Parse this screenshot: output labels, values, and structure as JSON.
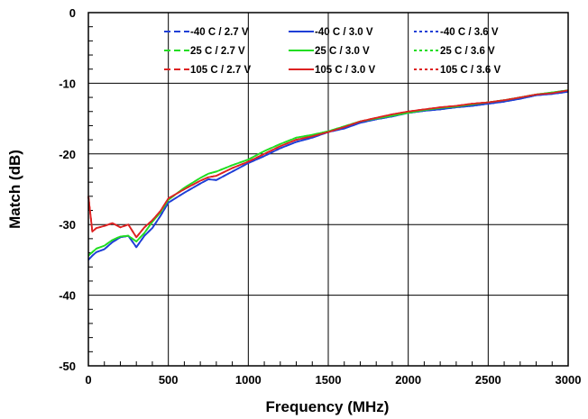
{
  "chart_data": {
    "type": "line",
    "title": "",
    "xlabel": "Frequency (MHz)",
    "ylabel": "Match (dB)",
    "xlim": [
      0,
      3000
    ],
    "ylim": [
      -50,
      0
    ],
    "xticks": [
      0,
      500,
      1000,
      1500,
      2000,
      2500,
      3000
    ],
    "yticks": [
      0,
      -10,
      -20,
      -30,
      -40,
      -50
    ],
    "grid": true,
    "legend_position": "top",
    "series": [
      {
        "name": "-40 C / 2.7 V",
        "color": "#1f3fd6",
        "dash": "dashed",
        "x": [
          0,
          25,
          50,
          100,
          150,
          200,
          250,
          300,
          350,
          400,
          450,
          500,
          600,
          700,
          750,
          800,
          900,
          1000,
          1100,
          1200,
          1300,
          1400,
          1500,
          1600,
          1700,
          1800,
          1900,
          2000,
          2100,
          2200,
          2300,
          2400,
          2500,
          2600,
          2700,
          2800,
          2900,
          3000
        ],
        "y": [
          -35,
          -34.4,
          -33.9,
          -33.5,
          -32.5,
          -31.8,
          -31.6,
          -33.2,
          -31.6,
          -30.5,
          -28.8,
          -26.9,
          -25.5,
          -24.2,
          -23.6,
          -23.7,
          -22.5,
          -21.3,
          -20.3,
          -19.2,
          -18.3,
          -17.7,
          -16.9,
          -16.4,
          -15.6,
          -15.1,
          -14.7,
          -14.2,
          -13.9,
          -13.7,
          -13.4,
          -13.2,
          -12.9,
          -12.6,
          -12.2,
          -11.7,
          -11.5,
          -11.2
        ]
      },
      {
        "name": "25 C / 2.7 V",
        "color": "#22dd22",
        "dash": "dashed",
        "x": [
          0,
          25,
          50,
          100,
          150,
          200,
          250,
          300,
          350,
          400,
          450,
          500,
          600,
          700,
          750,
          800,
          900,
          1000,
          1100,
          1200,
          1300,
          1400,
          1500,
          1600,
          1700,
          1800,
          1900,
          2000,
          2100,
          2200,
          2300,
          2400,
          2500,
          2600,
          2700,
          2800,
          2900,
          3000
        ],
        "y": [
          -34.4,
          -33.9,
          -33.4,
          -33.0,
          -32.2,
          -31.7,
          -31.6,
          -32.4,
          -31.2,
          -29.6,
          -28.3,
          -26.5,
          -24.8,
          -23.4,
          -22.8,
          -22.5,
          -21.6,
          -20.8,
          -19.6,
          -18.6,
          -17.7,
          -17.3,
          -16.8,
          -16.1,
          -15.4,
          -15.0,
          -14.6,
          -14.2,
          -13.8,
          -13.5,
          -13.3,
          -13.0,
          -12.7,
          -12.4,
          -12.0,
          -11.6,
          -11.3,
          -11.0
        ]
      },
      {
        "name": "105 C / 2.7 V",
        "color": "#dd2222",
        "dash": "dashed",
        "x": [
          0,
          25,
          50,
          100,
          150,
          200,
          250,
          300,
          350,
          400,
          450,
          500,
          600,
          700,
          750,
          800,
          900,
          1000,
          1100,
          1200,
          1300,
          1400,
          1500,
          1600,
          1700,
          1800,
          1900,
          2000,
          2100,
          2200,
          2300,
          2400,
          2500,
          2600,
          2700,
          2800,
          2900,
          3000
        ],
        "y": [
          -26,
          -31,
          -30.5,
          -30.2,
          -29.8,
          -30.4,
          -30.0,
          -31.8,
          -30.4,
          -29.4,
          -28.1,
          -26.3,
          -25.0,
          -23.8,
          -23.3,
          -23.1,
          -22.0,
          -21.1,
          -20.0,
          -18.9,
          -18.0,
          -17.5,
          -16.9,
          -16.2,
          -15.4,
          -14.9,
          -14.4,
          -14.0,
          -13.7,
          -13.4,
          -13.2,
          -12.9,
          -12.7,
          -12.4,
          -12.0,
          -11.6,
          -11.4,
          -11.0
        ]
      },
      {
        "name": "-40 C / 3.0 V",
        "color": "#1f3fd6",
        "dash": "solid",
        "x": [
          0,
          25,
          50,
          100,
          150,
          200,
          250,
          300,
          350,
          400,
          450,
          500,
          600,
          700,
          750,
          800,
          900,
          1000,
          1100,
          1200,
          1300,
          1400,
          1500,
          1600,
          1700,
          1800,
          1900,
          2000,
          2100,
          2200,
          2300,
          2400,
          2500,
          2600,
          2700,
          2800,
          2900,
          3000
        ],
        "y": [
          -35,
          -34.4,
          -33.9,
          -33.5,
          -32.5,
          -31.8,
          -31.6,
          -33.2,
          -31.6,
          -30.5,
          -28.8,
          -26.9,
          -25.5,
          -24.2,
          -23.6,
          -23.7,
          -22.5,
          -21.3,
          -20.3,
          -19.2,
          -18.3,
          -17.7,
          -16.9,
          -16.4,
          -15.6,
          -15.1,
          -14.7,
          -14.2,
          -13.9,
          -13.7,
          -13.4,
          -13.2,
          -12.9,
          -12.6,
          -12.2,
          -11.7,
          -11.5,
          -11.2
        ]
      },
      {
        "name": "25 C / 3.0 V",
        "color": "#22dd22",
        "dash": "solid",
        "x": [
          0,
          25,
          50,
          100,
          150,
          200,
          250,
          300,
          350,
          400,
          450,
          500,
          600,
          700,
          750,
          800,
          900,
          1000,
          1100,
          1200,
          1300,
          1400,
          1500,
          1600,
          1700,
          1800,
          1900,
          2000,
          2100,
          2200,
          2300,
          2400,
          2500,
          2600,
          2700,
          2800,
          2900,
          3000
        ],
        "y": [
          -34.4,
          -33.9,
          -33.4,
          -33.0,
          -32.2,
          -31.7,
          -31.6,
          -32.4,
          -31.2,
          -29.6,
          -28.3,
          -26.5,
          -24.8,
          -23.4,
          -22.8,
          -22.5,
          -21.6,
          -20.8,
          -19.6,
          -18.6,
          -17.7,
          -17.3,
          -16.8,
          -16.1,
          -15.4,
          -15.0,
          -14.6,
          -14.2,
          -13.8,
          -13.5,
          -13.3,
          -13.0,
          -12.7,
          -12.4,
          -12.0,
          -11.6,
          -11.3,
          -11.0
        ]
      },
      {
        "name": "105 C / 3.0 V",
        "color": "#dd2222",
        "dash": "solid",
        "x": [
          0,
          25,
          50,
          100,
          150,
          200,
          250,
          300,
          350,
          400,
          450,
          500,
          600,
          700,
          750,
          800,
          900,
          1000,
          1100,
          1200,
          1300,
          1400,
          1500,
          1600,
          1700,
          1800,
          1900,
          2000,
          2100,
          2200,
          2300,
          2400,
          2500,
          2600,
          2700,
          2800,
          2900,
          3000
        ],
        "y": [
          -26,
          -31,
          -30.5,
          -30.2,
          -29.8,
          -30.4,
          -30.0,
          -31.8,
          -30.4,
          -29.4,
          -28.1,
          -26.3,
          -25.0,
          -23.8,
          -23.3,
          -23.1,
          -22.0,
          -21.1,
          -20.0,
          -18.9,
          -18.0,
          -17.5,
          -16.9,
          -16.2,
          -15.4,
          -14.9,
          -14.4,
          -14.0,
          -13.7,
          -13.4,
          -13.2,
          -12.9,
          -12.7,
          -12.4,
          -12.0,
          -11.6,
          -11.4,
          -11.0
        ]
      },
      {
        "name": "-40 C / 3.6 V",
        "color": "#1f3fd6",
        "dash": "dotted",
        "x": [
          0,
          25,
          50,
          100,
          150,
          200,
          250,
          300,
          350,
          400,
          450,
          500,
          600,
          700,
          750,
          800,
          900,
          1000,
          1100,
          1200,
          1300,
          1400,
          1500,
          1600,
          1700,
          1800,
          1900,
          2000,
          2100,
          2200,
          2300,
          2400,
          2500,
          2600,
          2700,
          2800,
          2900,
          3000
        ],
        "y": [
          -35,
          -34.4,
          -33.9,
          -33.5,
          -32.5,
          -31.8,
          -31.6,
          -33.2,
          -31.6,
          -30.5,
          -28.8,
          -26.9,
          -25.5,
          -24.2,
          -23.6,
          -23.7,
          -22.5,
          -21.3,
          -20.3,
          -19.2,
          -18.3,
          -17.7,
          -16.9,
          -16.4,
          -15.6,
          -15.1,
          -14.7,
          -14.2,
          -13.9,
          -13.7,
          -13.4,
          -13.2,
          -12.9,
          -12.6,
          -12.2,
          -11.7,
          -11.5,
          -11.2
        ]
      },
      {
        "name": "25 C / 3.6 V",
        "color": "#22dd22",
        "dash": "dotted",
        "x": [
          0,
          25,
          50,
          100,
          150,
          200,
          250,
          300,
          350,
          400,
          450,
          500,
          600,
          700,
          750,
          800,
          900,
          1000,
          1100,
          1200,
          1300,
          1400,
          1500,
          1600,
          1700,
          1800,
          1900,
          2000,
          2100,
          2200,
          2300,
          2400,
          2500,
          2600,
          2700,
          2800,
          2900,
          3000
        ],
        "y": [
          -34.4,
          -33.9,
          -33.4,
          -33.0,
          -32.2,
          -31.7,
          -31.6,
          -32.4,
          -31.2,
          -29.6,
          -28.3,
          -26.5,
          -24.8,
          -23.4,
          -22.8,
          -22.5,
          -21.6,
          -20.8,
          -19.6,
          -18.6,
          -17.7,
          -17.3,
          -16.8,
          -16.1,
          -15.4,
          -15.0,
          -14.6,
          -14.2,
          -13.8,
          -13.5,
          -13.3,
          -13.0,
          -12.7,
          -12.4,
          -12.0,
          -11.6,
          -11.3,
          -11.0
        ]
      },
      {
        "name": "105 C / 3.6 V",
        "color": "#dd2222",
        "dash": "dotted",
        "x": [
          0,
          25,
          50,
          100,
          150,
          200,
          250,
          300,
          350,
          400,
          450,
          500,
          600,
          700,
          750,
          800,
          900,
          1000,
          1100,
          1200,
          1300,
          1400,
          1500,
          1600,
          1700,
          1800,
          1900,
          2000,
          2100,
          2200,
          2300,
          2400,
          2500,
          2600,
          2700,
          2800,
          2900,
          3000
        ],
        "y": [
          -26,
          -31,
          -30.5,
          -30.2,
          -29.8,
          -30.4,
          -30.0,
          -31.8,
          -30.4,
          -29.4,
          -28.1,
          -26.3,
          -25.0,
          -23.8,
          -23.3,
          -23.1,
          -22.0,
          -21.1,
          -20.0,
          -18.9,
          -18.0,
          -17.5,
          -16.9,
          -16.2,
          -15.4,
          -14.9,
          -14.4,
          -14.0,
          -13.7,
          -13.4,
          -13.2,
          -12.9,
          -12.7,
          -12.4,
          -12.0,
          -11.6,
          -11.4,
          -11.0
        ]
      }
    ]
  }
}
